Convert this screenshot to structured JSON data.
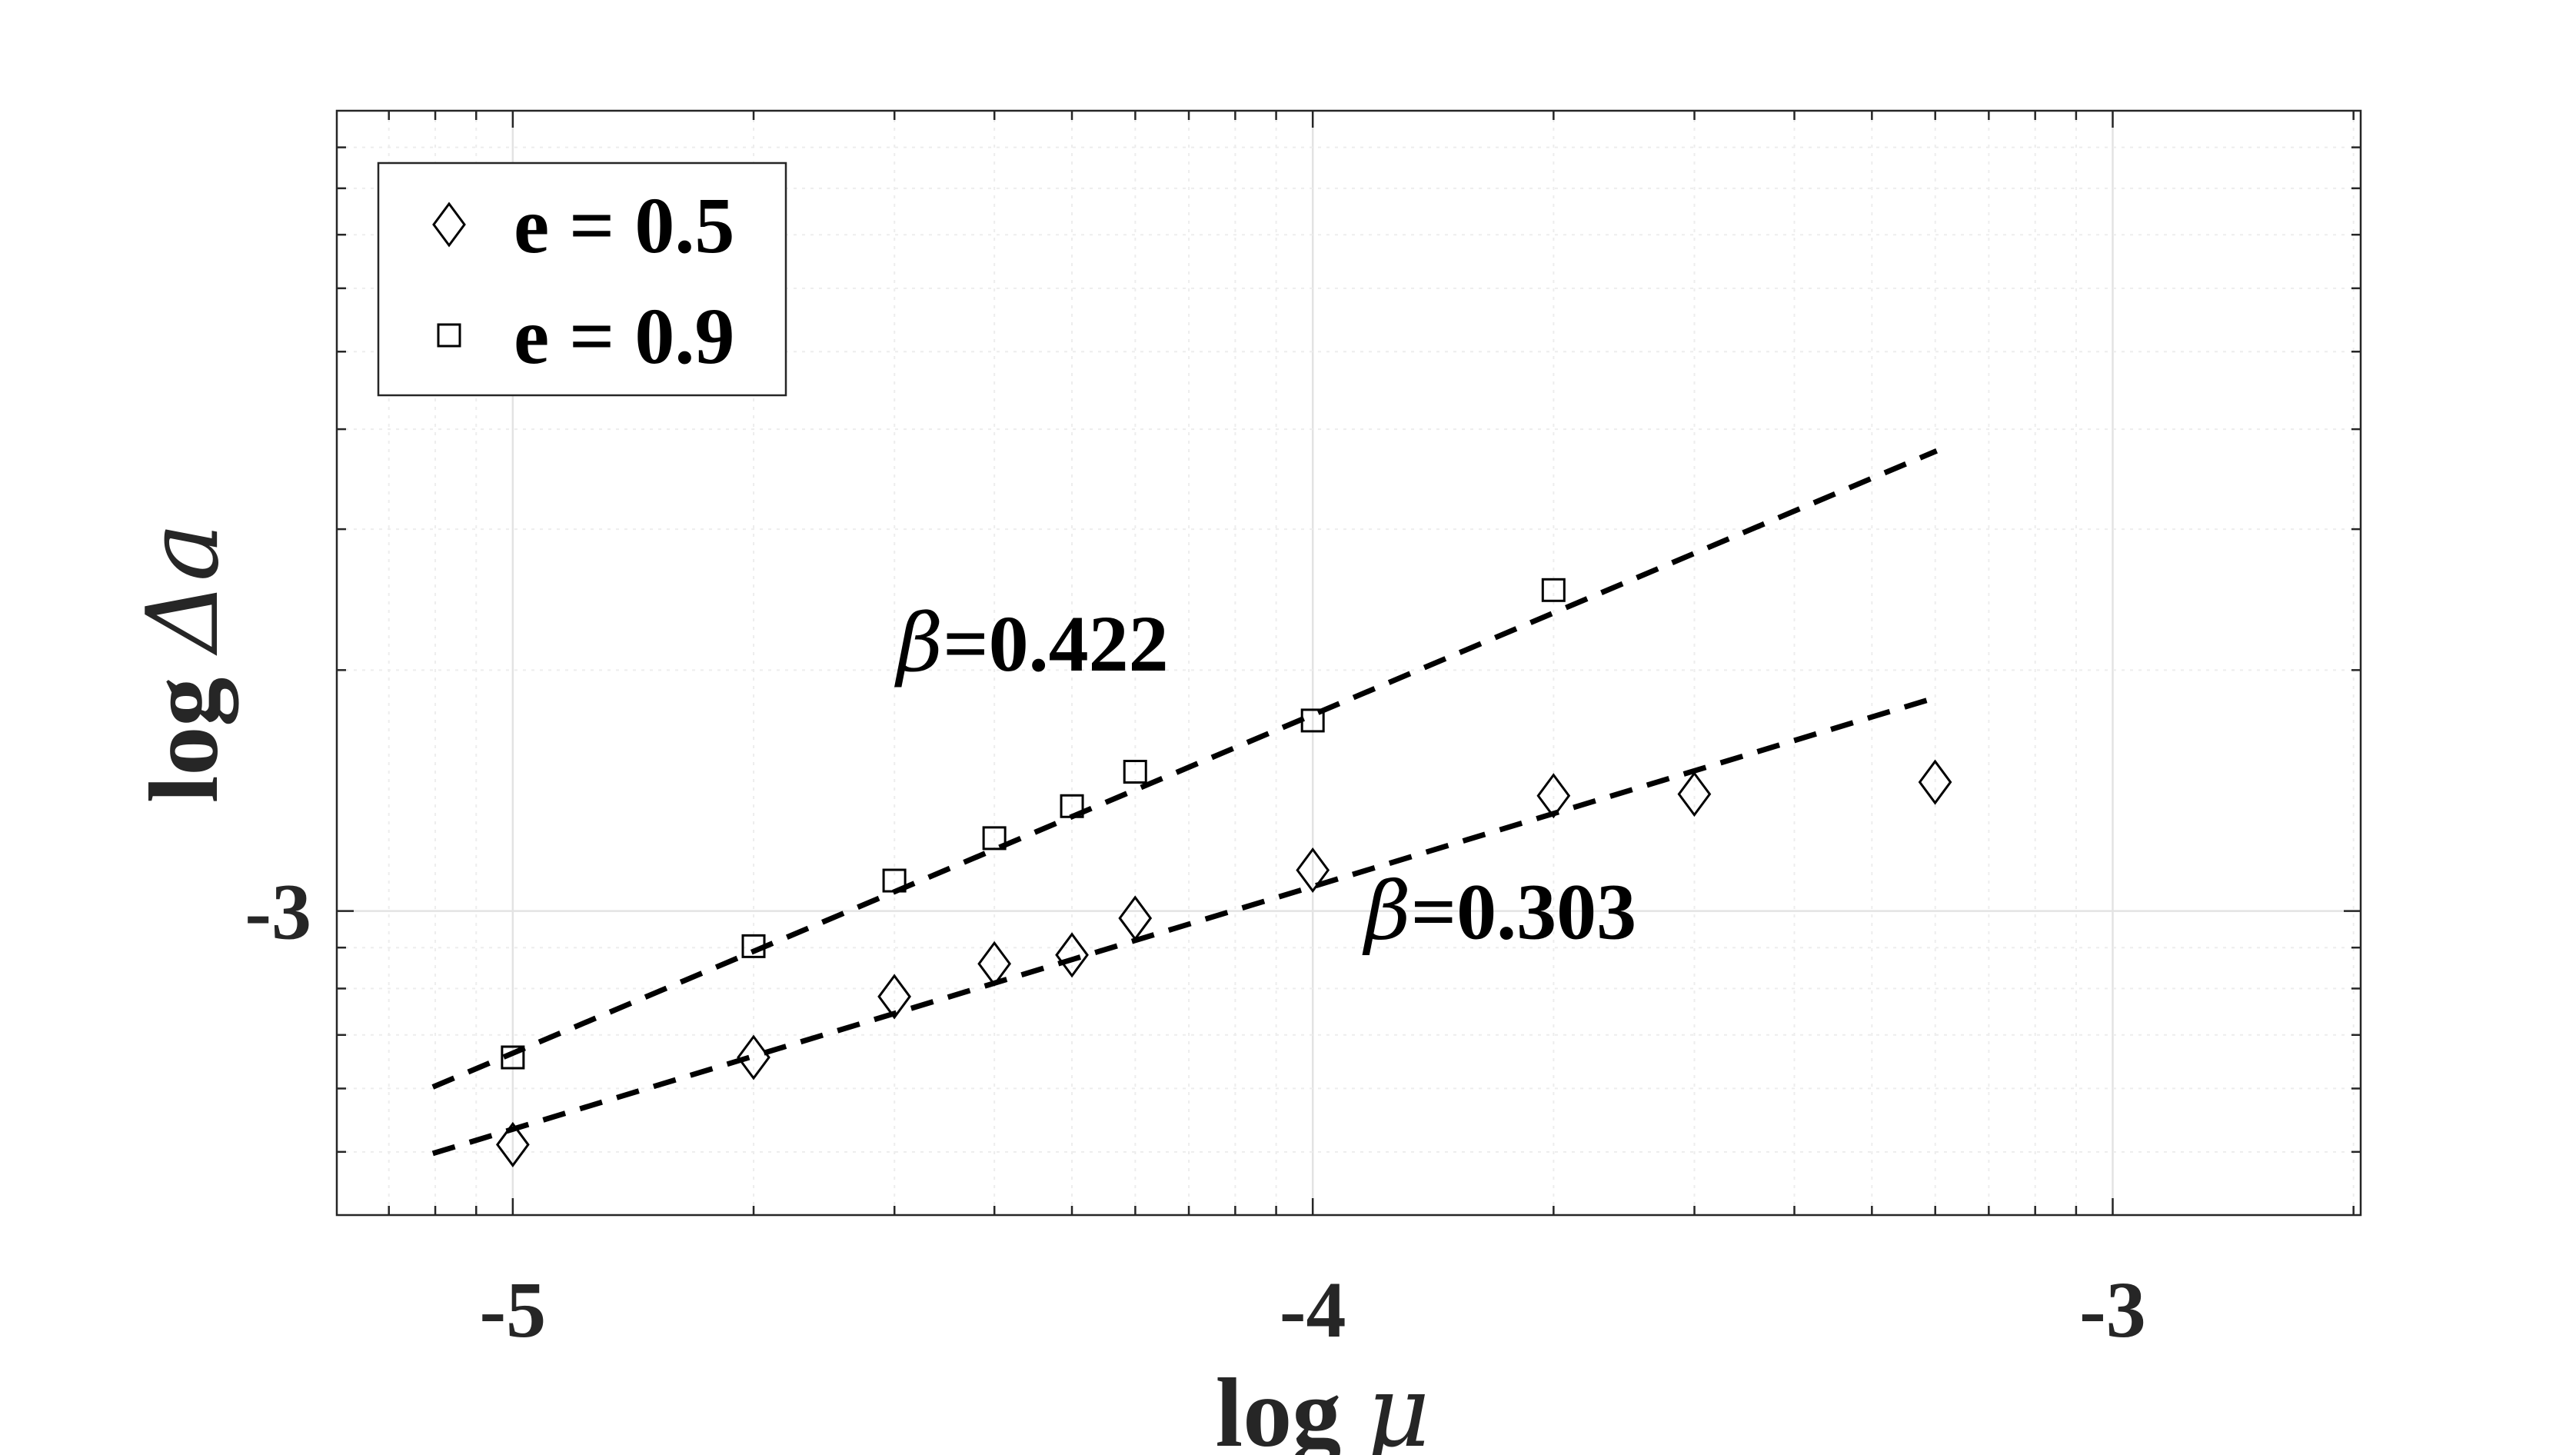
{
  "chart_data": {
    "type": "scatter",
    "x_scale": "log",
    "y_scale": "log",
    "xlim": [
      -5.22,
      -2.69
    ],
    "ylim": [
      -3.38,
      -2.0
    ],
    "x_ticks": [
      -5,
      -4,
      -3
    ],
    "x_tick_labels": [
      "-5",
      "-4",
      "-3"
    ],
    "y_ticks": [
      -3
    ],
    "y_tick_labels": [
      "-3"
    ],
    "xlabel": {
      "prefix": "log ",
      "symbol": "μ"
    },
    "ylabel": {
      "prefix": "log ",
      "symbol": "Δ",
      "var": "a"
    },
    "grid": true,
    "legend_position": "top-left",
    "series": [
      {
        "name": "e = 0.5",
        "marker": "diamond",
        "x": [
          -5.0,
          -4.699,
          -4.523,
          -4.398,
          -4.301,
          -4.222,
          -4.0,
          -3.699,
          -3.523,
          -3.222
        ],
        "y": [
          -3.292,
          -3.183,
          -3.107,
          -3.066,
          -3.055,
          -3.009,
          -2.949,
          -2.856,
          -2.854,
          -2.839
        ]
      },
      {
        "name": "e = 0.9",
        "marker": "square",
        "x": [
          -5.0,
          -4.699,
          -4.523,
          -4.398,
          -4.301,
          -4.222,
          -4.0,
          -3.699
        ],
        "y": [
          -3.183,
          -3.044,
          -2.962,
          -2.909,
          -2.869,
          -2.826,
          -2.762,
          -2.599
        ]
      }
    ],
    "fits": [
      {
        "series": "e = 0.9",
        "slope": 0.422,
        "x_range": [
          -5.1,
          -3.22
        ],
        "y_start": [
          -3.22
        ],
        "y_end": [
          -2.425
        ]
      },
      {
        "series": "e = 0.5",
        "slope": 0.303,
        "x_range": [
          -5.1,
          -3.22
        ],
        "y_start": [
          -3.303
        ],
        "y_end": [
          -2.733
        ]
      }
    ],
    "annotations": [
      {
        "symbol": "β",
        "value": "=0.422",
        "x": -4.52,
        "y": -2.665
      },
      {
        "symbol": "β",
        "value": "=0.303",
        "x": -3.935,
        "y": -3.0
      }
    ]
  }
}
